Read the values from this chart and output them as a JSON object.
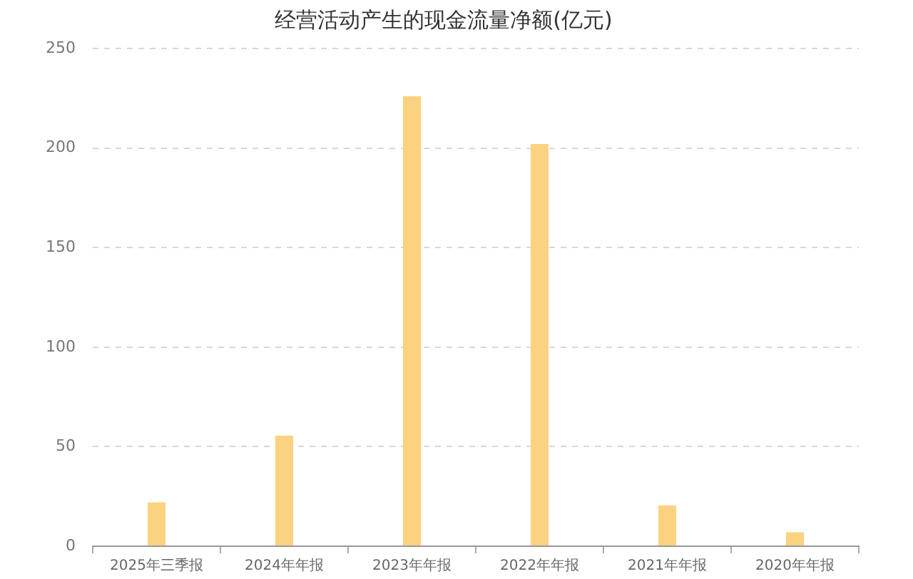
{
  "chart_data": {
    "type": "bar",
    "title": "经营活动产生的现金流量净额(亿元)",
    "categories": [
      "2025年三季报",
      "2024年年报",
      "2023年年报",
      "2022年年报",
      "2021年年报",
      "2020年年报"
    ],
    "values": [
      22,
      55.5,
      226,
      202,
      20.5,
      7
    ],
    "color": "#fad280",
    "ylim": [
      0,
      250
    ],
    "yticks": [
      0,
      50,
      100,
      150,
      200,
      250
    ],
    "grid": "y"
  }
}
